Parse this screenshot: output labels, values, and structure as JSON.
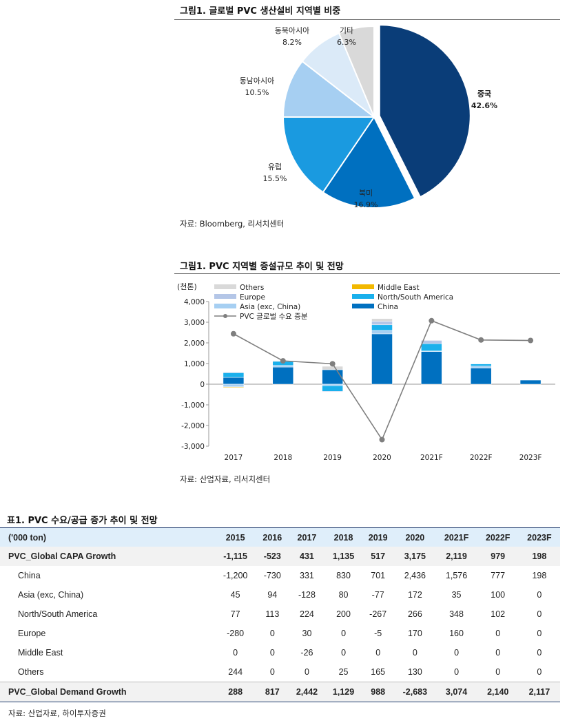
{
  "fig1": {
    "title": "그림1. 글로벌 PVC 생산설비 지역별 비중",
    "source": "자료: Bloomberg, 리서치센터"
  },
  "fig2": {
    "title": "그림1. PVC 지역별 증설규모 추이 및 전망",
    "unit": "(천톤)",
    "source": "자료: 산업자료, 리서치센터"
  },
  "table": {
    "title": "표1. PVC 수요/공급 증가 추이 및 전망",
    "source": "자료: 산업자료, 하이투자증권",
    "header": [
      "('000 ton)",
      "2015",
      "2016",
      "2017",
      "2018",
      "2019",
      "2020",
      "2021F",
      "2022F",
      "2023F"
    ],
    "rows": [
      {
        "label": "PVC_Global CAPA Growth",
        "values": [
          "-1,115",
          "-523",
          "431",
          "1,135",
          "517",
          "3,175",
          "2,119",
          "979",
          "198"
        ],
        "style": "bold"
      },
      {
        "label": "China",
        "values": [
          "-1,200",
          "-730",
          "331",
          "830",
          "701",
          "2,436",
          "1,576",
          "777",
          "198"
        ],
        "style": ""
      },
      {
        "label": "Asia (exc, China)",
        "values": [
          "45",
          "94",
          "-128",
          "80",
          "-77",
          "172",
          "35",
          "100",
          "0"
        ],
        "style": ""
      },
      {
        "label": "North/South America",
        "values": [
          "77",
          "113",
          "224",
          "200",
          "-267",
          "266",
          "348",
          "102",
          "0"
        ],
        "style": ""
      },
      {
        "label": "Europe",
        "values": [
          "-280",
          "0",
          "30",
          "0",
          "-5",
          "170",
          "160",
          "0",
          "0"
        ],
        "style": ""
      },
      {
        "label": "Middle East",
        "values": [
          "0",
          "0",
          "-26",
          "0",
          "0",
          "0",
          "0",
          "0",
          "0"
        ],
        "style": ""
      },
      {
        "label": "Others",
        "values": [
          "244",
          "0",
          "0",
          "25",
          "165",
          "130",
          "0",
          "0",
          "0"
        ],
        "style": "cagr"
      },
      {
        "label": "PVC_Global Demand Growth",
        "values": [
          "288",
          "817",
          "2,442",
          "1,129",
          "988",
          "-2,683",
          "3,074",
          "2,140",
          "2,117"
        ],
        "style": "total"
      }
    ]
  },
  "chart_data": [
    {
      "type": "pie",
      "labels": [
        "중국",
        "북미",
        "유럽",
        "동남아시아",
        "동북아시아",
        "기타"
      ],
      "values": [
        42.6,
        16.9,
        15.5,
        10.5,
        8.2,
        6.3
      ],
      "value_labels": [
        "42.6%",
        "16.9%",
        "15.5%",
        "10.5%",
        "8.2%",
        "6.3%"
      ],
      "colors": [
        "#0a3d78",
        "#0070c0",
        "#1a9ae0",
        "#a6cff2",
        "#dbeaf8",
        "#d9d9d9"
      ],
      "exploded": "중국"
    },
    {
      "type": "bar",
      "stacked": true,
      "categories": [
        "2017",
        "2018",
        "2019",
        "2020",
        "2021F",
        "2022F",
        "2023F"
      ],
      "ylim": [
        -3000,
        4000
      ],
      "yticks": [
        4000,
        3000,
        2000,
        1000,
        0,
        -1000,
        -2000,
        -3000
      ],
      "ytick_labels": [
        "4,000",
        "3,000",
        "2,000",
        "1,000",
        "0",
        "-1,000",
        "-2,000",
        "-3,000"
      ],
      "ylabel": "(천톤)",
      "series": [
        {
          "name": "China",
          "color": "#0070c0",
          "values": [
            331,
            830,
            701,
            2436,
            1576,
            777,
            198
          ]
        },
        {
          "name": "Asia (exc, China)",
          "color": "#a6cff2",
          "values": [
            -128,
            80,
            -77,
            172,
            35,
            100,
            0
          ]
        },
        {
          "name": "North/South America",
          "color": "#1ab0ec",
          "values": [
            224,
            200,
            -267,
            266,
            348,
            102,
            0
          ]
        },
        {
          "name": "Europe",
          "color": "#b4c6e7",
          "values": [
            30,
            0,
            -5,
            170,
            160,
            0,
            0
          ]
        },
        {
          "name": "Middle East",
          "color": "#f2b800",
          "values": [
            -26,
            0,
            0,
            0,
            0,
            0,
            0
          ]
        },
        {
          "name": "Others",
          "color": "#d9d9d9",
          "values": [
            0,
            25,
            165,
            130,
            0,
            0,
            0
          ]
        }
      ],
      "line": {
        "name": "PVC 글로벌 수요 증분",
        "color": "#7f7f7f",
        "values": [
          2442,
          1129,
          988,
          -2683,
          3074,
          2140,
          2117
        ]
      },
      "legend_order": [
        "Others",
        "Middle East",
        "Europe",
        "North/South America",
        "Asia (exc, China)",
        "China",
        "PVC 글로벌 수요 증분"
      ],
      "legend": "top"
    }
  ]
}
